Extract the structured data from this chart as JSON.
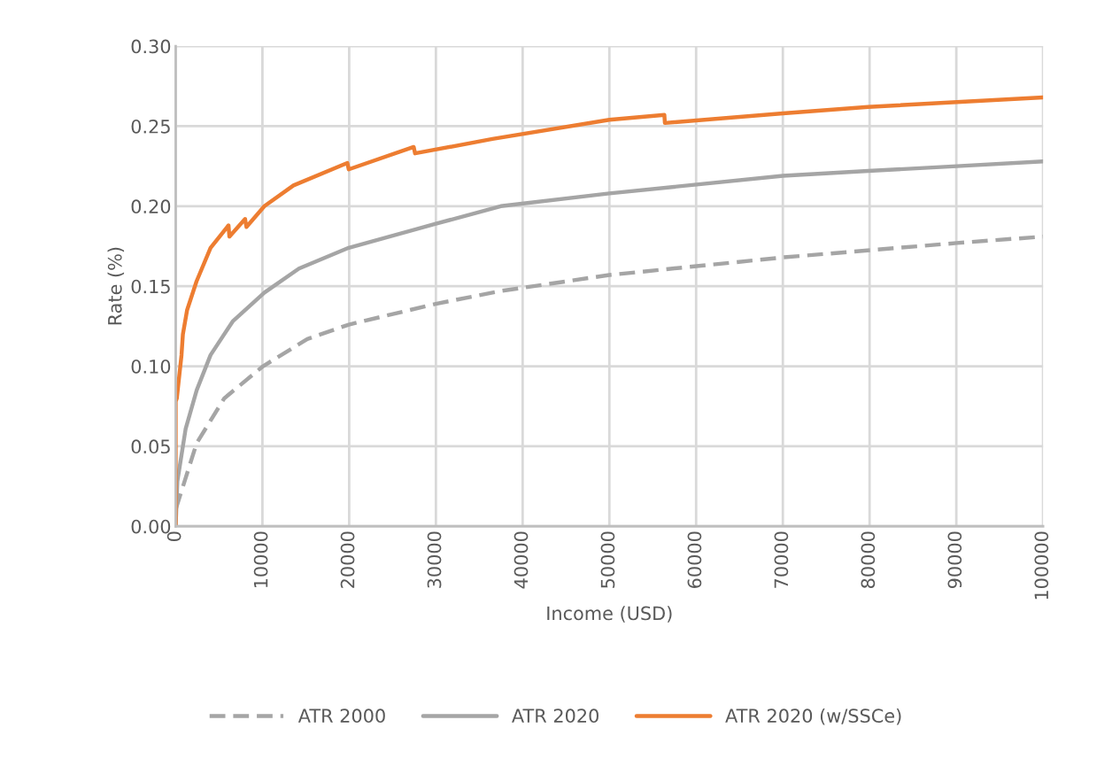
{
  "chart_data": {
    "type": "line",
    "xlabel": "Income (USD)",
    "ylabel": "Rate (%)",
    "xlim": [
      0,
      100000
    ],
    "xticks": [
      0,
      10000,
      20000,
      30000,
      40000,
      50000,
      60000,
      70000,
      80000,
      90000,
      100000
    ],
    "ylim": [
      0,
      0.3
    ],
    "yticks": [
      {
        "value": 0,
        "label": "0.00"
      },
      {
        "value": 0.05,
        "label": "0.05"
      },
      {
        "value": 0.1,
        "label": "0.10"
      },
      {
        "value": 0.15,
        "label": "0.15"
      },
      {
        "value": 0.2,
        "label": "0.20"
      },
      {
        "value": 0.25,
        "label": "0.25"
      },
      {
        "value": 0.3,
        "label": "0.30"
      }
    ],
    "grid": true,
    "legend": "bottom",
    "marker": "none",
    "series": [
      {
        "name": "ATR 2000",
        "color": "#a5a5a5",
        "line_style": "dashed",
        "x": [
          30,
          2420,
          5610,
          10070,
          15170,
          19950,
          29990,
          37480,
          50000,
          70020,
          90060,
          100000
        ],
        "values": [
          0.011,
          0.052,
          0.08,
          0.1,
          0.117,
          0.126,
          0.139,
          0.147,
          0.157,
          0.168,
          0.177,
          0.181
        ]
      },
      {
        "name": "ATR 2020",
        "color": "#a5a5a5",
        "line_style": "solid",
        "x": [
          0,
          190,
          1150,
          2420,
          4020,
          6570,
          10230,
          14210,
          19950,
          29990,
          37480,
          50000,
          70020,
          79830,
          90060,
          100000
        ],
        "values": [
          0,
          0.028,
          0.061,
          0.085,
          0.107,
          0.128,
          0.146,
          0.161,
          0.174,
          0.189,
          0.2,
          0.208,
          0.219,
          0.222,
          0.225,
          0.228
        ]
      },
      {
        "name": "ATR 2020 (w/SSCe)",
        "color": "#ed7d31",
        "line_style": "solid",
        "x": [
          0,
          0,
          130,
          670,
          830,
          1310,
          2400,
          4020,
          6090,
          6190,
          8000,
          8160,
          10230,
          13580,
          19790,
          19950,
          27440,
          27600,
          36520,
          50000,
          56340,
          56400,
          70020,
          79830,
          100000
        ],
        "values": [
          0,
          0.078,
          0.08,
          0.107,
          0.12,
          0.135,
          0.153,
          0.174,
          0.188,
          0.181,
          0.192,
          0.187,
          0.2,
          0.213,
          0.227,
          0.223,
          0.237,
          0.233,
          0.242,
          0.254,
          0.257,
          0.252,
          0.258,
          0.262,
          0.268
        ]
      }
    ]
  }
}
